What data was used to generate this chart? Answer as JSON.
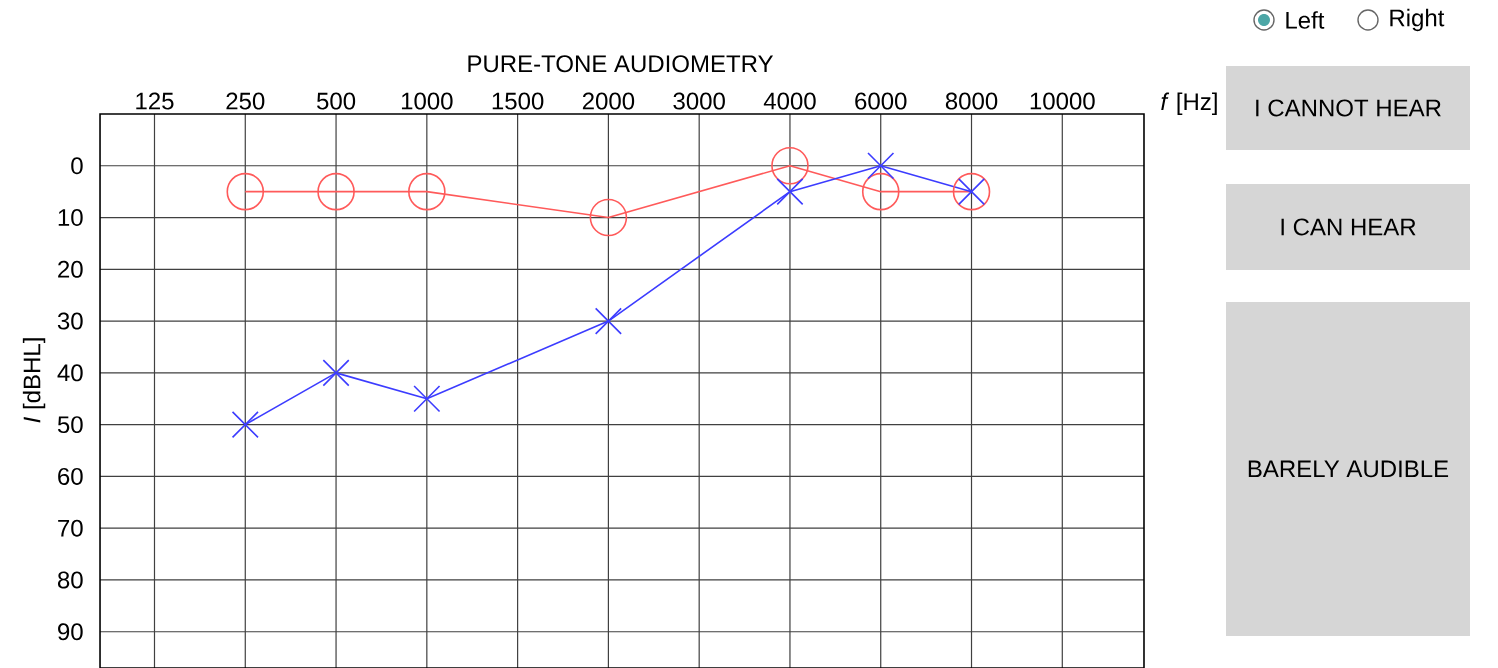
{
  "chart_data": {
    "type": "line",
    "title": "PURE-TONE AUDIOMETRY",
    "xlabel": "*f* [Hz]",
    "ylabel": "*I* [dBHL]",
    "categories": [
      "125",
      "250",
      "500",
      "1000",
      "1500",
      "2000",
      "3000",
      "4000",
      "6000",
      "8000",
      "10000"
    ],
    "series": [
      {
        "color": "#ff5a5a",
        "marker": "circle",
        "values": [
          null,
          5,
          5,
          5,
          null,
          10,
          null,
          0,
          5,
          5,
          null
        ]
      },
      {
        "color": "#3c3cff",
        "marker": "cross",
        "values": [
          null,
          50,
          40,
          45,
          null,
          30,
          null,
          5,
          0,
          5,
          null
        ]
      }
    ],
    "ylim": [
      97,
      -10
    ],
    "yticks": [
      0,
      10,
      20,
      30,
      40,
      50,
      60,
      70,
      80,
      90
    ],
    "grid": true,
    "annotations": [
      "Left",
      "Right",
      "I CANNOT HEAR",
      "I CAN HEAR",
      "BARELY AUDIBLE"
    ]
  }
}
